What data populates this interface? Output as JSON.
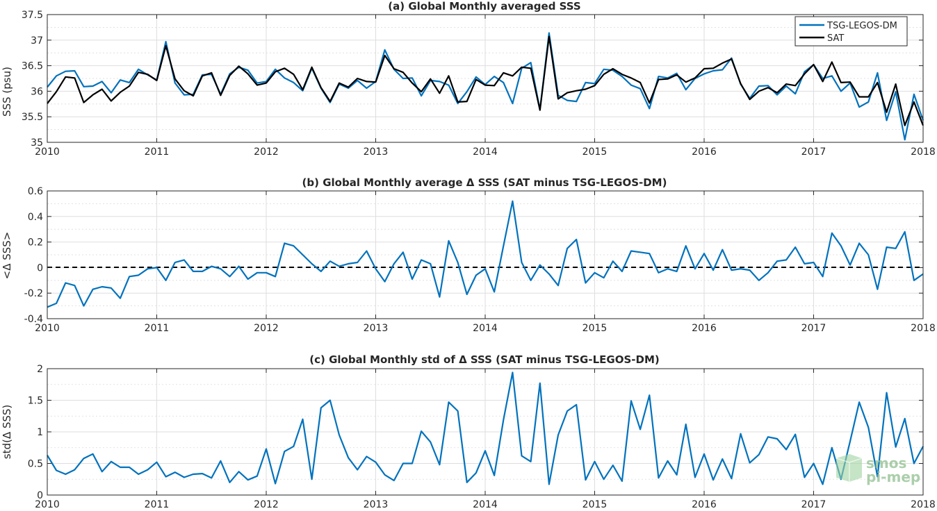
{
  "chart_data": [
    {
      "type": "line",
      "title": "(a) Global Monthly averaged SSS",
      "ylabel": "SSS (psu)",
      "xlabel": "",
      "xlim": [
        2010,
        2018
      ],
      "ylim": [
        35,
        37.5
      ],
      "xticks": [
        "2010",
        "2011",
        "2012",
        "2013",
        "2014",
        "2015",
        "2016",
        "2017",
        "2018"
      ],
      "yticks": [
        "35",
        "35.5",
        "36",
        "36.5",
        "37",
        "37.5"
      ],
      "legend": "top-right",
      "grid": true,
      "colors": {
        "TSG-LEGOS-DM": "#0072BD",
        "SAT": "#000000"
      },
      "series": [
        {
          "name": "TSG-LEGOS-DM",
          "values": [
            36.08,
            36.3,
            36.39,
            36.4,
            36.09,
            36.1,
            36.19,
            35.97,
            36.22,
            36.17,
            36.43,
            36.32,
            36.22,
            36.97,
            36.16,
            35.93,
            35.94,
            36.32,
            36.33,
            35.94,
            36.34,
            36.47,
            36.41,
            36.16,
            36.19,
            36.43,
            36.26,
            36.17,
            36.01,
            36.45,
            36.06,
            35.78,
            36.14,
            36.06,
            36.21,
            36.06,
            36.19,
            36.81,
            36.43,
            36.25,
            36.26,
            35.91,
            36.21,
            36.19,
            36.12,
            35.76,
            35.99,
            36.28,
            36.13,
            36.29,
            36.17,
            35.76,
            36.45,
            36.56,
            35.64,
            37.14,
            35.92,
            35.82,
            35.8,
            36.17,
            36.15,
            36.43,
            36.41,
            36.29,
            36.12,
            36.05,
            35.66,
            36.29,
            36.26,
            36.35,
            36.03,
            36.25,
            36.34,
            36.4,
            36.42,
            36.65,
            36.14,
            35.86,
            36.1,
            36.11,
            35.93,
            36.1,
            35.95,
            36.38,
            36.52,
            36.25,
            36.3,
            36.0,
            36.16,
            35.69,
            35.79,
            36.36,
            35.43,
            35.99,
            35.05,
            35.94,
            35.43
          ]
        },
        {
          "name": "SAT",
          "values": [
            35.76,
            35.99,
            36.28,
            36.26,
            35.78,
            35.93,
            36.04,
            35.81,
            35.98,
            36.1,
            36.37,
            36.33,
            36.21,
            36.89,
            36.24,
            36.01,
            35.91,
            36.3,
            36.36,
            35.92,
            36.31,
            36.49,
            36.34,
            36.12,
            36.16,
            36.38,
            36.45,
            36.33,
            36.03,
            36.47,
            36.07,
            35.8,
            36.16,
            36.08,
            36.25,
            36.19,
            36.18,
            36.7,
            36.44,
            36.37,
            36.16,
            35.99,
            36.24,
            35.96,
            36.3,
            35.79,
            35.8,
            36.23,
            36.12,
            36.11,
            36.36,
            36.3,
            36.47,
            36.45,
            35.63,
            37.07,
            35.85,
            35.97,
            36.01,
            36.04,
            36.11,
            36.33,
            36.44,
            36.33,
            36.26,
            36.17,
            35.77,
            36.23,
            36.24,
            36.32,
            36.18,
            36.26,
            36.44,
            36.45,
            36.55,
            36.63,
            36.15,
            35.84,
            36.0,
            36.07,
            35.97,
            36.14,
            36.11,
            36.34,
            36.52,
            36.19,
            36.57,
            36.17,
            36.18,
            35.89,
            35.89,
            36.17,
            35.59,
            36.14,
            35.33,
            35.79,
            35.33
          ]
        }
      ]
    },
    {
      "type": "line",
      "title": "(b) Global Monthly average Δ SSS (SAT minus TSG-LEGOS-DM)",
      "ylabel": "<Δ SSS>",
      "xlabel": "",
      "xlim": [
        2010,
        2018
      ],
      "ylim": [
        -0.4,
        0.6
      ],
      "xticks": [
        "2010",
        "2011",
        "2012",
        "2013",
        "2014",
        "2015",
        "2016",
        "2017",
        "2018"
      ],
      "yticks": [
        "-0.4",
        "-0.2",
        "0",
        "0.2",
        "0.4",
        "0.6"
      ],
      "grid": true,
      "reference_line": {
        "y": 0,
        "style": "dashed",
        "color": "#000000"
      },
      "colors": {
        "delta": "#0072BD"
      },
      "series": [
        {
          "values": [
            -0.31,
            -0.28,
            -0.12,
            -0.14,
            -0.3,
            -0.17,
            -0.15,
            -0.16,
            -0.24,
            -0.07,
            -0.06,
            -0.01,
            0.0,
            -0.1,
            0.04,
            0.06,
            -0.03,
            -0.03,
            0.01,
            -0.01,
            -0.07,
            0.01,
            -0.09,
            -0.04,
            -0.04,
            -0.07,
            0.19,
            0.17,
            0.1,
            0.03,
            -0.03,
            0.05,
            0.01,
            0.03,
            0.04,
            0.13,
            -0.01,
            -0.11,
            0.03,
            0.12,
            -0.09,
            0.06,
            0.03,
            -0.23,
            0.21,
            0.04,
            -0.21,
            -0.06,
            -0.01,
            -0.19,
            0.17,
            0.52,
            0.04,
            -0.1,
            0.02,
            -0.05,
            -0.14,
            0.15,
            0.22,
            -0.12,
            -0.04,
            -0.08,
            0.05,
            -0.03,
            0.13,
            0.12,
            0.11,
            -0.04,
            -0.01,
            -0.03,
            0.17,
            -0.01,
            0.11,
            -0.02,
            0.14,
            -0.02,
            -0.01,
            -0.02,
            -0.1,
            -0.04,
            0.05,
            0.06,
            0.16,
            0.03,
            0.04,
            -0.07,
            0.27,
            0.17,
            0.02,
            0.19,
            0.1,
            -0.17,
            0.16,
            0.15,
            0.28,
            -0.1,
            -0.05
          ]
        }
      ]
    },
    {
      "type": "line",
      "title": "(c) Global Monthly std of Δ SSS (SAT minus TSG-LEGOS-DM)",
      "ylabel": "std(Δ SSS)",
      "xlabel": "",
      "xlim": [
        2010,
        2018
      ],
      "ylim": [
        0,
        2
      ],
      "xticks": [
        "2010",
        "2011",
        "2012",
        "2013",
        "2014",
        "2015",
        "2016",
        "2017",
        "2018"
      ],
      "yticks": [
        "0",
        "0.5",
        "1",
        "1.5",
        "2"
      ],
      "grid": true,
      "colors": {
        "std": "#0072BD"
      },
      "series": [
        {
          "values": [
            0.63,
            0.39,
            0.33,
            0.4,
            0.58,
            0.65,
            0.37,
            0.53,
            0.44,
            0.44,
            0.33,
            0.4,
            0.52,
            0.29,
            0.36,
            0.28,
            0.33,
            0.34,
            0.27,
            0.54,
            0.2,
            0.37,
            0.24,
            0.3,
            0.73,
            0.18,
            0.69,
            0.77,
            1.2,
            0.25,
            1.38,
            1.5,
            0.95,
            0.59,
            0.4,
            0.61,
            0.52,
            0.32,
            0.23,
            0.5,
            0.5,
            1.01,
            0.84,
            0.48,
            1.47,
            1.33,
            0.2,
            0.35,
            0.7,
            0.31,
            1.19,
            1.94,
            0.62,
            0.53,
            1.77,
            0.17,
            0.95,
            1.33,
            1.43,
            0.24,
            0.53,
            0.25,
            0.47,
            0.22,
            1.49,
            1.04,
            1.58,
            0.27,
            0.54,
            0.32,
            1.12,
            0.28,
            0.65,
            0.24,
            0.57,
            0.26,
            0.97,
            0.51,
            0.64,
            0.92,
            0.89,
            0.72,
            0.96,
            0.28,
            0.5,
            0.17,
            0.75,
            0.25,
            0.85,
            1.47,
            1.07,
            0.29,
            1.62,
            0.76,
            1.21,
            0.5,
            0.77
          ]
        }
      ]
    }
  ],
  "watermark": {
    "line1": "smos",
    "line2": "pi-mep",
    "color": "#8fbf8f"
  }
}
